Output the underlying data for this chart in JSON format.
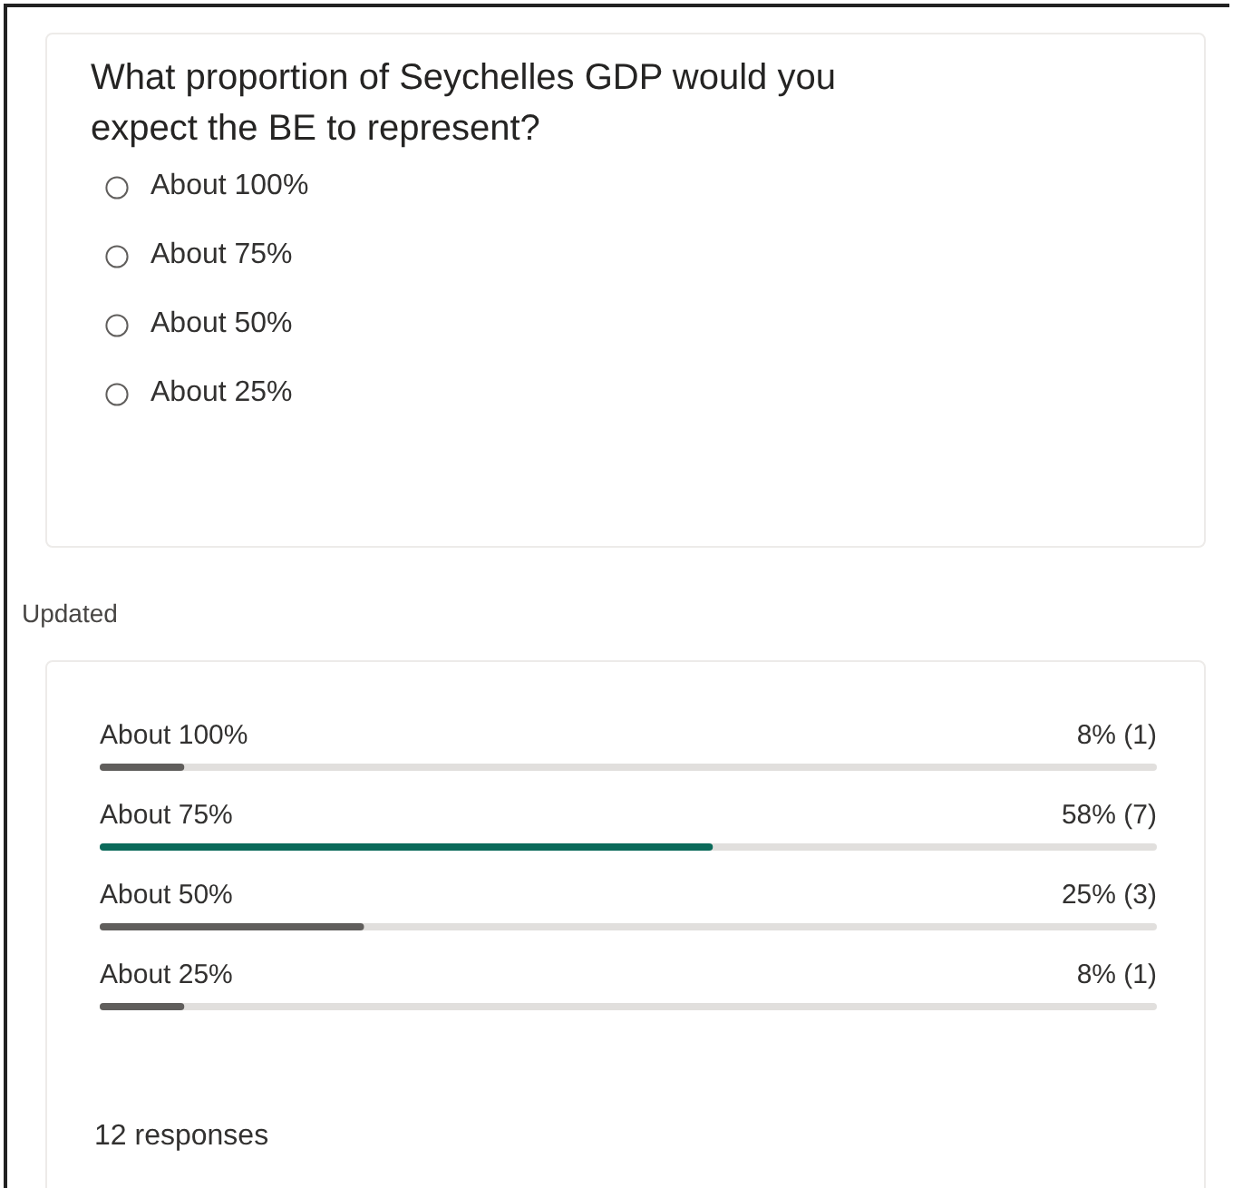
{
  "chart_data": {
    "type": "bar",
    "orientation": "horizontal",
    "title": "What proportion of Seychelles GDP would you expect the BE to represent?",
    "categories": [
      "About 100%",
      "About 75%",
      "About 50%",
      "About 25%"
    ],
    "values": [
      8,
      58,
      25,
      8
    ],
    "value_labels": [
      "8% (1)",
      "58% (7)",
      "25% (3)",
      "8% (1)"
    ],
    "colors": [
      "#605e5c",
      "#0b6a5a",
      "#605e5c",
      "#605e5c"
    ],
    "xlim": [
      0,
      100
    ],
    "tick_labels": false,
    "annotations": [
      "About 100%",
      "About 75%",
      "About 50%",
      "About 25%",
      "Updated",
      "12 responses"
    ]
  }
}
